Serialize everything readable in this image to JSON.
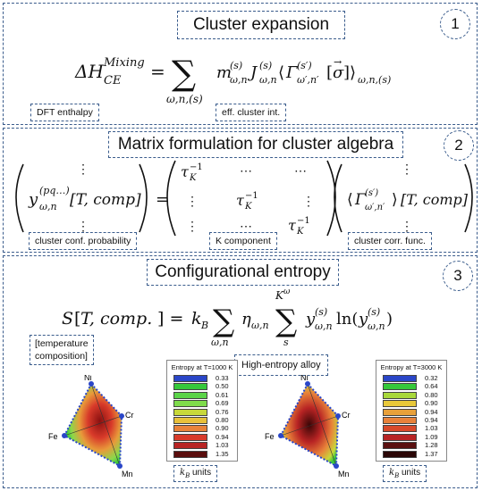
{
  "panel1": {
    "title": "Cluster expansion",
    "number": "1",
    "label_dft": "DFT enthalpy",
    "label_eci": "eff. cluster int."
  },
  "panel2": {
    "title": "Matrix formulation for cluster algebra",
    "number": "2",
    "label_prob": "cluster conf. probability",
    "label_k": "K component",
    "label_corr": "cluster corr. func."
  },
  "panel3": {
    "title": "Configurational entropy",
    "number": "3",
    "label_temp_line1": "[temperature",
    "label_temp_line2": "composition]",
    "label_hea": "High-entropy alloy",
    "units_left": "units",
    "units_right": "units",
    "triangle_left": {
      "top": "Ni",
      "right": "Cr",
      "left": "Fe",
      "bottom": "Mn"
    },
    "triangle_right": {
      "top": "Ni",
      "right": "Cr",
      "left": "Fe",
      "bottom": "Mn"
    }
  },
  "legend_left": {
    "title": "Entropy at T=1000 K",
    "values": [
      "0.33",
      "0.50",
      "0.61",
      "0.69",
      "0.76",
      "0.80",
      "0.90",
      "0.94",
      "1.03",
      "1.35"
    ],
    "colors": [
      "#2a46c8",
      "#36c83a",
      "#5ad448",
      "#7fdc4c",
      "#c8d83a",
      "#e8c03a",
      "#e8823a",
      "#d83a2a",
      "#b82424",
      "#5a0e0e"
    ]
  },
  "legend_right": {
    "title": "Entropy at T=3000 K",
    "values": [
      "0.32",
      "0.64",
      "0.80",
      "0.90",
      "0.94",
      "0.94",
      "1.03",
      "1.09",
      "1.28",
      "1.37"
    ],
    "colors": [
      "#2a46c8",
      "#36c83a",
      "#a8d83a",
      "#e8c83a",
      "#e8a03a",
      "#e8823a",
      "#d84a2a",
      "#b82424",
      "#5a1010",
      "#2a0606"
    ]
  }
}
